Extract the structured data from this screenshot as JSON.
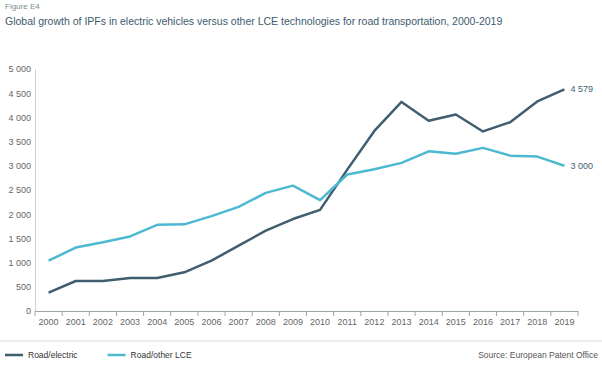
{
  "chart_data": {
    "type": "line",
    "title": "Global growth of IPFs in electric vehicles versus other LCE technologies for road transportation, 2000-2019",
    "annotations": [
      "Figure E4",
      "Source: European Patent Office"
    ],
    "categories": [
      "2000",
      "2001",
      "2002",
      "2003",
      "2004",
      "2005",
      "2006",
      "2007",
      "2008",
      "2009",
      "2010",
      "2011",
      "2012",
      "2013",
      "2014",
      "2015",
      "2016",
      "2017",
      "2018",
      "2019"
    ],
    "series": [
      {
        "name": "Road/electric",
        "color": "#405e70",
        "values": [
          380,
          620,
          620,
          680,
          680,
          800,
          1040,
          1350,
          1660,
          1900,
          2090,
          2920,
          3720,
          4320,
          3930,
          4060,
          3710,
          3900,
          4330,
          4579
        ],
        "value_labels": [
          null,
          null,
          null,
          null,
          null,
          null,
          null,
          null,
          null,
          null,
          null,
          null,
          null,
          null,
          null,
          null,
          null,
          null,
          null,
          "4 579"
        ]
      },
      {
        "name": "Road/other LCE",
        "color": "#4db9d1",
        "values": [
          1040,
          1310,
          1420,
          1540,
          1780,
          1790,
          1960,
          2150,
          2440,
          2590,
          2290,
          2820,
          2930,
          3060,
          3300,
          3250,
          3370,
          3210,
          3190,
          3000
        ],
        "value_labels": [
          null,
          null,
          null,
          null,
          null,
          null,
          null,
          null,
          null,
          null,
          null,
          null,
          null,
          null,
          null,
          null,
          null,
          null,
          null,
          "3 000"
        ]
      }
    ],
    "ylim": [
      0,
      5000
    ],
    "yticks": [
      0,
      500,
      {
        "value": 1000,
        "label": "1 000"
      },
      {
        "value": 1500,
        "label": "1 500"
      },
      {
        "value": 2000,
        "label": "2 000"
      },
      {
        "value": 2500,
        "label": "2 500"
      },
      {
        "value": 3000,
        "label": "3 000"
      },
      {
        "value": 3500,
        "label": "3 500"
      },
      {
        "value": 4000,
        "label": "4 000"
      },
      {
        "value": 4500,
        "label": "4 500"
      },
      {
        "value": 5000,
        "label": "5 000"
      }
    ],
    "grid": false,
    "legend": "bottom-left"
  }
}
